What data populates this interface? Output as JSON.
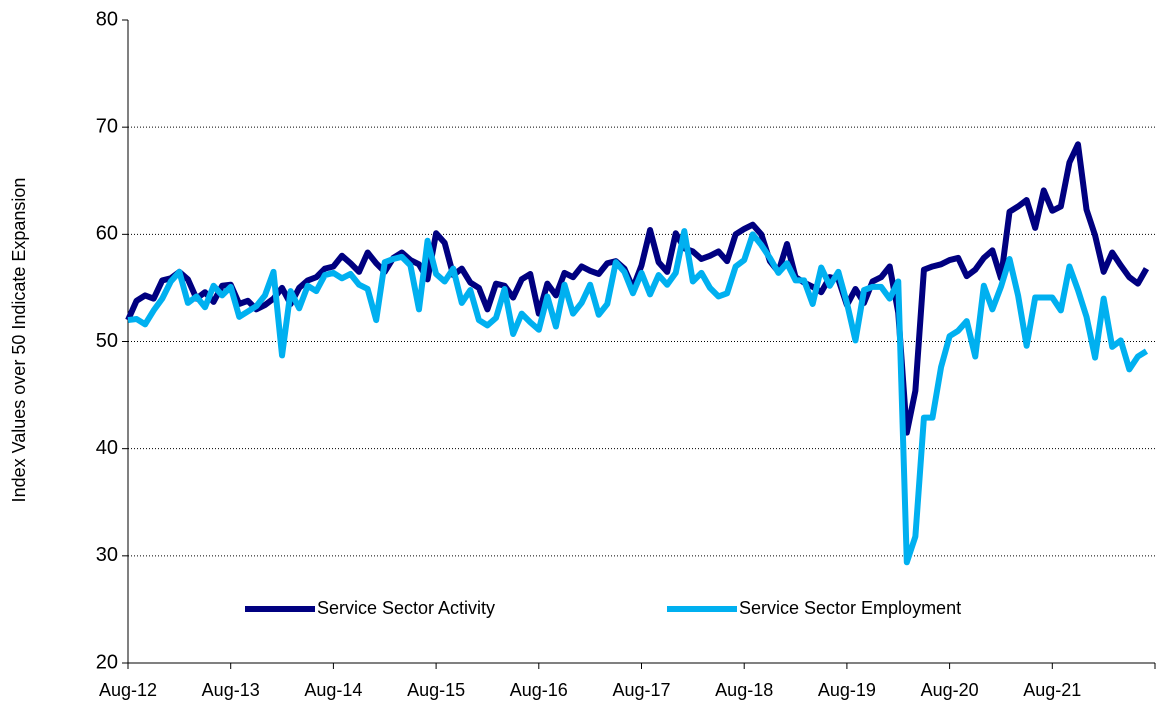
{
  "chart_data": {
    "type": "line",
    "ylabel": "Index Values over 50 Indicate Expansion",
    "categories": [
      "Aug-12",
      null,
      null,
      null,
      null,
      null,
      null,
      null,
      null,
      null,
      null,
      null,
      "Aug-13",
      null,
      null,
      null,
      null,
      null,
      null,
      null,
      null,
      null,
      null,
      null,
      "Aug-14",
      null,
      null,
      null,
      null,
      null,
      null,
      null,
      null,
      null,
      null,
      null,
      "Aug-15",
      null,
      null,
      null,
      null,
      null,
      null,
      null,
      null,
      null,
      null,
      null,
      "Aug-16",
      null,
      null,
      null,
      null,
      null,
      null,
      null,
      null,
      null,
      null,
      null,
      "Aug-17",
      null,
      null,
      null,
      null,
      null,
      null,
      null,
      null,
      null,
      null,
      null,
      "Aug-18",
      null,
      null,
      null,
      null,
      null,
      null,
      null,
      null,
      null,
      null,
      null,
      "Aug-19",
      null,
      null,
      null,
      null,
      null,
      null,
      null,
      null,
      null,
      null,
      null,
      "Aug-20",
      null,
      null,
      null,
      null,
      null,
      null,
      null,
      null,
      null,
      null,
      null,
      "Aug-21",
      null,
      null,
      null,
      null,
      null,
      null,
      null,
      null,
      null,
      null,
      null
    ],
    "series": [
      {
        "name": "Service Sector Activity",
        "color": "#000080",
        "values": [
          52,
          53.8,
          54.3,
          54,
          55.7,
          55.9,
          56.5,
          55.8,
          54,
          54.6,
          53.7,
          55.2,
          55.3,
          53.5,
          53.8,
          53,
          53.4,
          54,
          55,
          53.5,
          55,
          55.7,
          56,
          56.8,
          57,
          58,
          57.3,
          56.5,
          58.3,
          57.3,
          56.5,
          57.8,
          58.3,
          57.6,
          57.2,
          55.8,
          60.1,
          59.2,
          56.2,
          56.8,
          55.5,
          55,
          53,
          55.4,
          55.2,
          54.1,
          55.8,
          56.3,
          52.6,
          55.4,
          54.3,
          56.4,
          56,
          57,
          56.6,
          56.3,
          57.3,
          57.5,
          56.8,
          55,
          57.1,
          60.4,
          57.4,
          56.5,
          60.1,
          58.7,
          58.4,
          57.7,
          58,
          58.4,
          57.5,
          60,
          60.5,
          60.9,
          60,
          57.5,
          56.5,
          59.1,
          56,
          55.5,
          55.1,
          54.6,
          56,
          55.8,
          53.4,
          54.9,
          53.6,
          55.6,
          56,
          57,
          52.7,
          41.5,
          45.4,
          56.7,
          57,
          57.2,
          57.6,
          57.8,
          56.1,
          56.7,
          57.8,
          58.5,
          55.9,
          62.1,
          62.6,
          63.2,
          60.6,
          64.1,
          62.2,
          62.6,
          66.7,
          68.4,
          62.3,
          59.9,
          56.5,
          58.3,
          57.1,
          56,
          55.4,
          56.8
        ]
      },
      {
        "name": "Service Sector Employment",
        "color": "#00b0f0",
        "values": [
          52,
          52.1,
          51.6,
          52.9,
          54,
          55.6,
          56.5,
          53.6,
          54.2,
          53.2,
          55.2,
          54.3,
          55.1,
          52.3,
          52.8,
          53.3,
          54.3,
          56.5,
          48.7,
          54.7,
          53.1,
          55.2,
          54.7,
          56.2,
          56.4,
          55.9,
          56.3,
          55.3,
          54.9,
          52,
          57.4,
          57.7,
          57.9,
          57.1,
          53,
          59.4,
          56.3,
          55.6,
          56.8,
          53.6,
          54.8,
          52,
          51.5,
          52.2,
          54.9,
          50.7,
          52.6,
          51.8,
          51.1,
          54.2,
          51.4,
          55.3,
          52.6,
          53.6,
          55.3,
          52.5,
          53.5,
          57.4,
          56.5,
          54.5,
          56.4,
          54.4,
          56.2,
          55.3,
          56.4,
          60.3,
          55.6,
          56.4,
          55,
          54.2,
          54.5,
          57,
          57.6,
          60,
          59,
          57.8,
          56.4,
          57.3,
          55.7,
          55.7,
          53.5,
          56.9,
          55.2,
          56.5,
          53.6,
          50.1,
          54.8,
          55.1,
          55.1,
          54,
          55.6,
          29.4,
          31.8,
          42.9,
          42.9,
          47.6,
          50.5,
          51,
          51.9,
          48.6,
          55.2,
          53,
          55.1,
          57.7,
          54.3,
          49.6,
          54.1,
          54.1,
          54.1,
          52.9,
          57,
          54.8,
          52.3,
          48.5,
          54,
          49.5,
          50.1,
          47.4,
          48.6,
          49.1
        ]
      }
    ],
    "ylim": [
      20,
      80
    ],
    "yticks": [
      20,
      30,
      40,
      50,
      60,
      70,
      80
    ],
    "grid": true,
    "legend": "lower center"
  }
}
